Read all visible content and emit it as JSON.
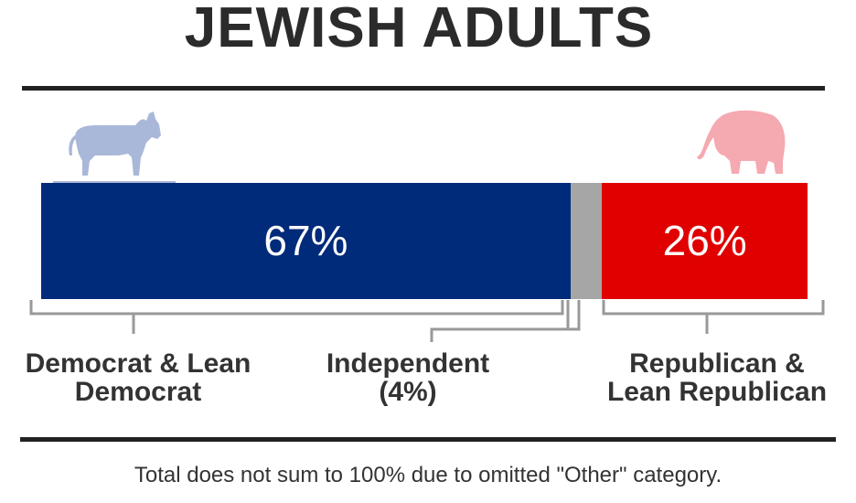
{
  "chart_data": {
    "type": "bar",
    "orientation": "horizontal-stacked",
    "title": "JEWISH ADULTS",
    "series": [
      {
        "category": "Democrat & Lean Democrat",
        "value": 67,
        "value_label": "67%",
        "color": "#002a7a"
      },
      {
        "category": "Independent (4%)",
        "value": 4,
        "value_label": "",
        "color": "#a6a6a6"
      },
      {
        "category": "Republican & Lean Republican",
        "value": 26,
        "value_label": "26%",
        "color": "#e00000"
      }
    ],
    "category_labels": {
      "democrat": "Democrat & Lean\nDemocrat",
      "independent": "Independent\n(4%)",
      "republican": "Republican &\nLean Republican"
    },
    "note": "Total does not sum to 100% due to omitted \"Other\" category.",
    "icons": {
      "left": "donkey-icon",
      "right": "elephant-icon"
    },
    "icon_colors": {
      "donkey": "#a9b8d8",
      "elephant": "#f5a9b0"
    },
    "bracket_color": "#999999"
  }
}
